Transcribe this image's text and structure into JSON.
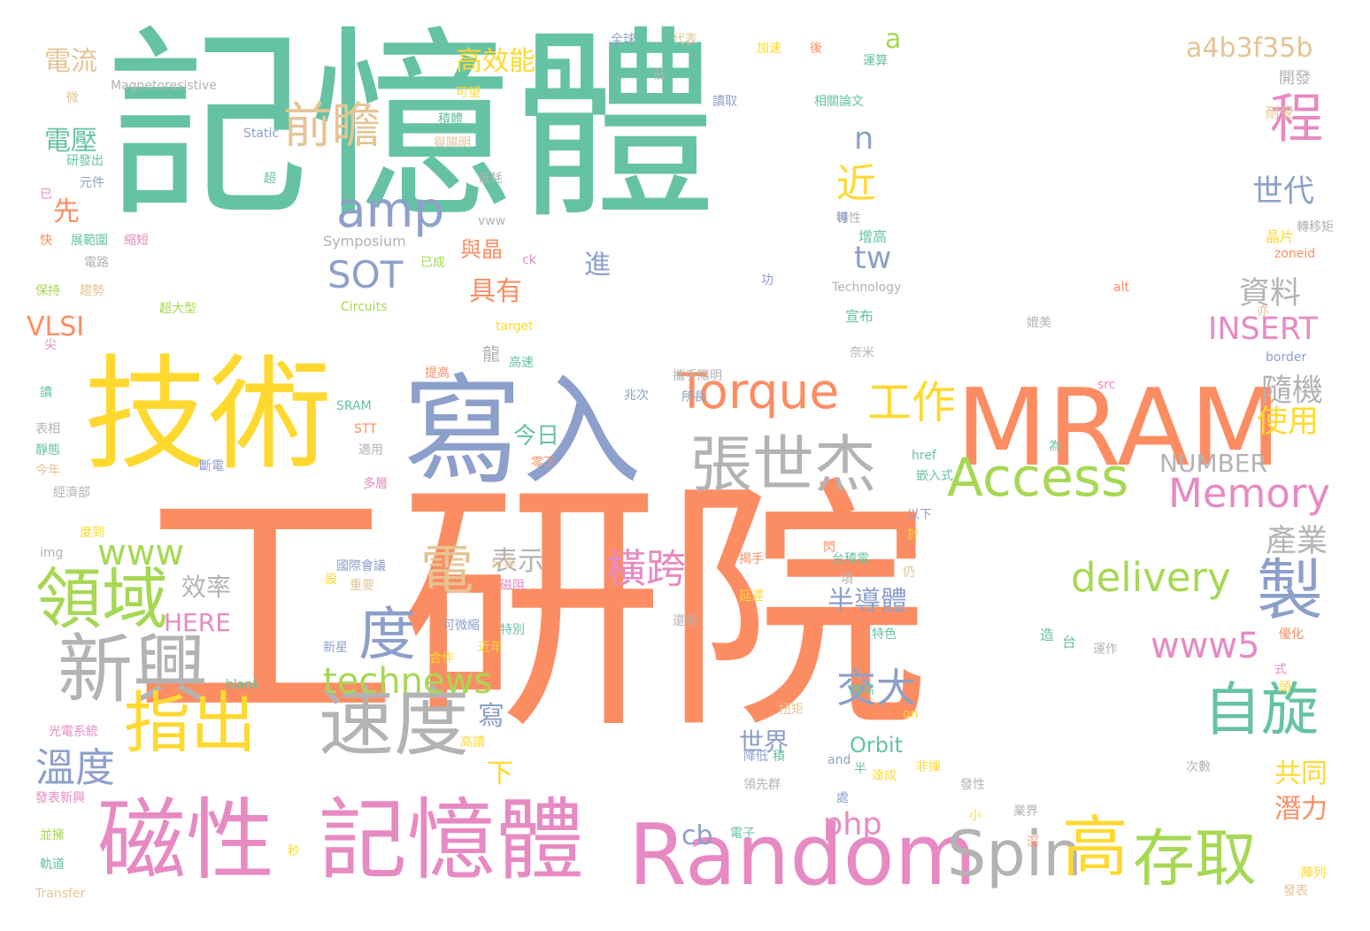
{
  "colors": {
    "teal": "#66c2a5",
    "orange": "#fc8d62",
    "blue": "#8da0cb",
    "pink": "#e78ac3",
    "green": "#a6d854",
    "yellow": "#ffd92f",
    "tan": "#e5c494",
    "gray": "#b3b3b3"
  },
  "words": [
    "記憶體",
    "工研院",
    "技術",
    "寫入",
    "MRAM",
    "研院",
    "磁性",
    "記憶體",
    "Random",
    "新興",
    "速度",
    "領域",
    "指出",
    "Spin",
    "張世杰",
    "Access",
    "Torque",
    "amp",
    "高",
    "存取",
    "自旋",
    "製",
    "程",
    "前瞻",
    "Memory",
    "technews",
    "delivery",
    "SOT",
    "電",
    "度",
    "橫跨",
    "交大",
    "www5",
    "工作",
    "a",
    "溫度",
    "www",
    "php",
    "cb",
    "tw",
    "n",
    "近",
    "a4b3f35b",
    "INSERT",
    "NUMBER",
    "半導體",
    "隨機",
    "使用",
    "產業",
    "資料",
    "世代",
    "高效能",
    "電流",
    "電壓",
    "先",
    "VLSI",
    "具有",
    "進",
    "表示",
    "效率",
    "HERE",
    "世界",
    "Orbit",
    "潛力",
    "共同",
    "下",
    "寫",
    "今日",
    "與晶",
    "龍",
    "Symposium",
    "Technology",
    "Circuits",
    "target",
    "SRAM",
    "STT",
    "Magnetoresistive",
    "Static",
    "Transfer",
    "img",
    "blank",
    "and",
    "on",
    "href",
    "src",
    "border",
    "alt",
    "zoneid",
    "宣布",
    "增高",
    "晶片",
    "轉移矩",
    "開發",
    "耐受",
    "全球",
    "代表",
    "加速",
    "後",
    "運算",
    "讀取",
    "相關論文",
    "可望",
    "積體",
    "與陽明",
    "研發出",
    "元件",
    "已",
    "快",
    "展範圍",
    "縮短",
    "電路",
    "保持",
    "趨勢",
    "超大型",
    "尖",
    "讀",
    "表相",
    "靜態",
    "今年",
    "經濟部",
    "度到",
    "國際會議",
    "重要",
    "磁阻",
    "分享",
    "可微縮",
    "特別",
    "近年",
    "合作",
    "新星",
    "延遲",
    "攜手陽明",
    "所長",
    "斷電",
    "適用",
    "多層",
    "零下",
    "兆次",
    "揭手",
    "台積電",
    "項",
    "仍",
    "於",
    "以下",
    "為",
    "嵌入式",
    "特色",
    "還項",
    "優化",
    "式",
    "頭",
    "運作",
    "降低",
    "領先群",
    "高讀",
    "電子",
    "非揮",
    "發性",
    "業界",
    "深",
    "小",
    "次數",
    "陣列",
    "發表",
    "發表新興",
    "並擁",
    "軌道",
    "光電系統",
    "秒",
    "閃",
    "高速",
    "提高",
    "媲美",
    "奈米",
    "越高",
    "台",
    "造",
    "達成",
    "半",
    "處",
    "積",
    "扭矩",
    "設",
    "微",
    "低",
    "低耗",
    "特性",
    "導",
    "亦",
    "vww",
    "ck",
    "已成",
    "超",
    "功",
    "研發出"
  ]
}
